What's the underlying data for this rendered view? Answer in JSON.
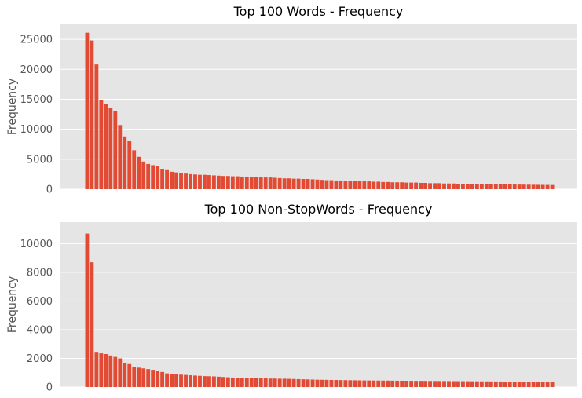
{
  "colors": {
    "bar": "#E24A33",
    "plot_bg": "#E5E5E5",
    "grid": "#FFFFFF"
  },
  "chart_data": [
    {
      "type": "bar",
      "title": "Top 100 Words - Frequency",
      "xlabel": "",
      "ylabel": "Frequency",
      "ylim": [
        0,
        27500
      ],
      "yticks": [
        0,
        5000,
        10000,
        15000,
        20000,
        25000
      ],
      "grid": true,
      "values": [
        26100,
        24800,
        20800,
        14800,
        14200,
        13500,
        13000,
        10700,
        8800,
        8000,
        6500,
        5400,
        4600,
        4200,
        4000,
        3900,
        3400,
        3300,
        2900,
        2800,
        2700,
        2600,
        2500,
        2450,
        2400,
        2400,
        2350,
        2300,
        2250,
        2200,
        2200,
        2150,
        2150,
        2100,
        2100,
        2050,
        2000,
        2000,
        1950,
        1950,
        1900,
        1850,
        1800,
        1800,
        1750,
        1750,
        1700,
        1700,
        1650,
        1600,
        1550,
        1500,
        1500,
        1450,
        1450,
        1400,
        1400,
        1350,
        1350,
        1300,
        1300,
        1250,
        1250,
        1200,
        1200,
        1150,
        1150,
        1150,
        1100,
        1100,
        1100,
        1050,
        1050,
        1000,
        1000,
        1000,
        950,
        950,
        950,
        900,
        900,
        900,
        880,
        860,
        850,
        840,
        830,
        820,
        810,
        800,
        790,
        780,
        770,
        760,
        750,
        740,
        730,
        720,
        710,
        700
      ]
    },
    {
      "type": "bar",
      "title": "Top 100 Non-StopWords - Frequency",
      "xlabel": "",
      "ylabel": "Frequency",
      "ylim": [
        0,
        11500
      ],
      "yticks": [
        0,
        2000,
        4000,
        6000,
        8000,
        10000
      ],
      "grid": true,
      "values": [
        10700,
        8700,
        2400,
        2350,
        2300,
        2200,
        2100,
        2000,
        1700,
        1600,
        1400,
        1350,
        1300,
        1250,
        1200,
        1100,
        1050,
        950,
        900,
        880,
        860,
        840,
        820,
        800,
        780,
        760,
        750,
        740,
        720,
        700,
        680,
        660,
        650,
        640,
        630,
        620,
        610,
        600,
        600,
        590,
        590,
        580,
        580,
        570,
        560,
        550,
        540,
        530,
        520,
        510,
        505,
        500,
        495,
        490,
        485,
        480,
        475,
        470,
        465,
        460,
        458,
        455,
        452,
        450,
        448,
        445,
        442,
        440,
        438,
        435,
        432,
        430,
        428,
        425,
        422,
        420,
        418,
        415,
        412,
        410,
        408,
        405,
        402,
        400,
        398,
        395,
        392,
        390,
        385,
        380,
        375,
        370,
        365,
        360,
        355,
        350,
        345,
        340,
        335,
        330
      ]
    }
  ]
}
